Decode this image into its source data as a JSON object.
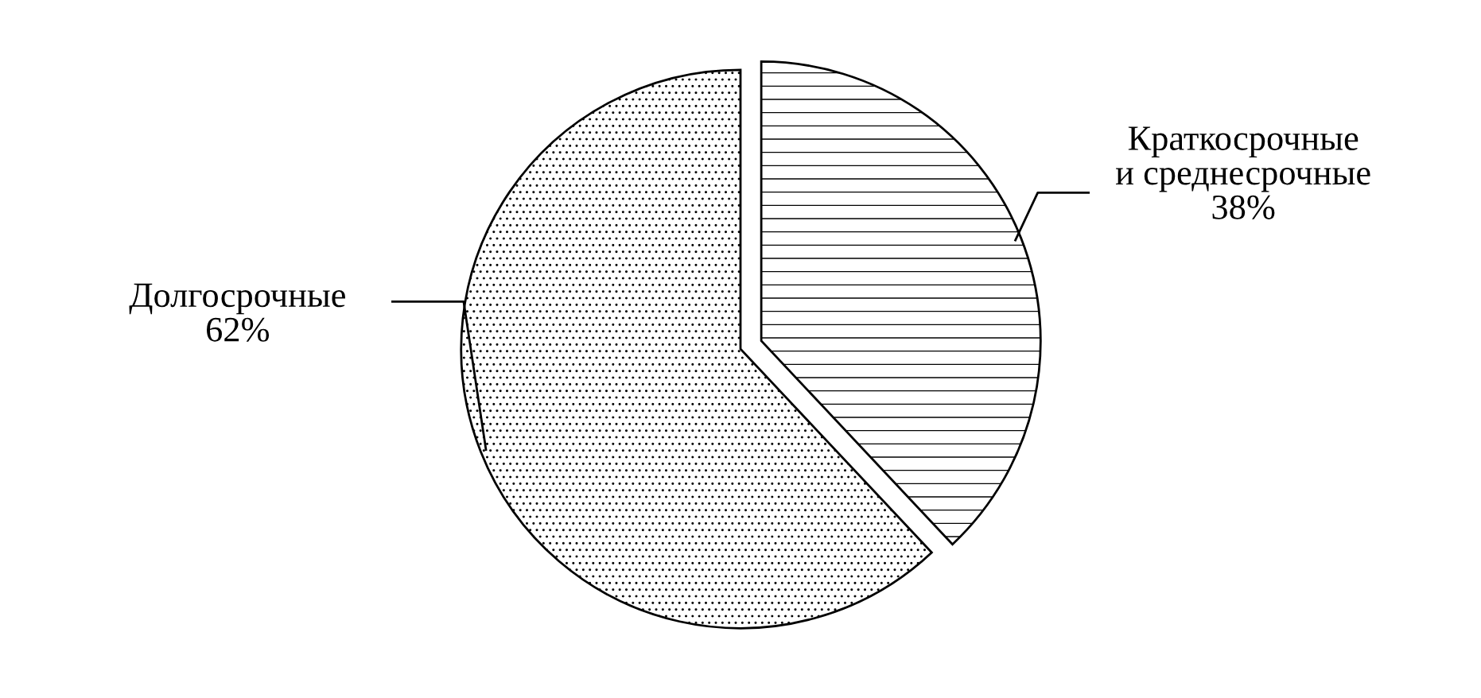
{
  "chart_data": {
    "type": "pie",
    "categories": [
      "Краткосрочные\nи среднесрочные",
      "Долгосрочные"
    ],
    "values": [
      38,
      62
    ],
    "colors": [
      "#ffffff",
      "#ffffff"
    ],
    "value_labels": [
      "38%",
      "62%"
    ]
  }
}
